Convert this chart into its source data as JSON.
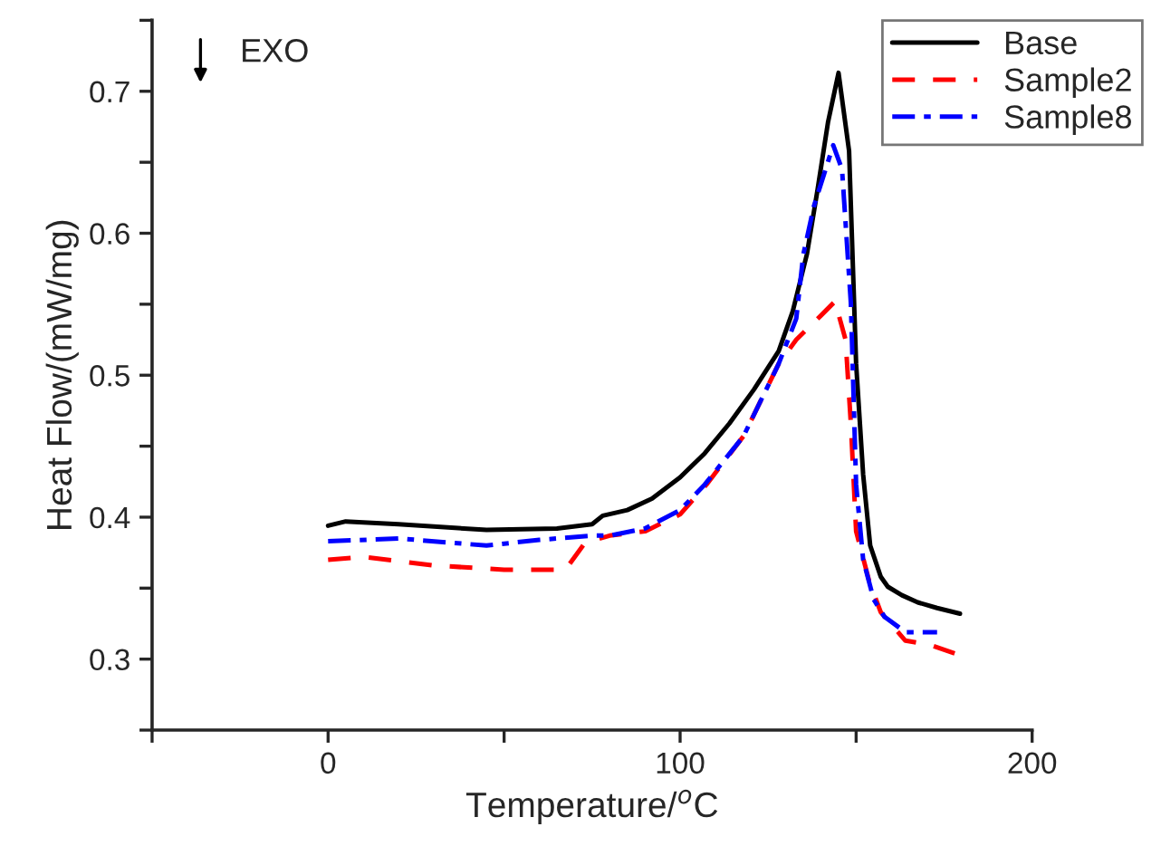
{
  "chart_data": {
    "type": "line",
    "xlabel": "Temperature/$^{o}$C",
    "ylabel": "Heat Flow/(mW/mg)",
    "annotations": [
      "EXO"
    ],
    "xlim": [
      -50,
      200
    ],
    "xticks": [
      {
        "value": -50,
        "label": null
      },
      0,
      {
        "value": 50,
        "label": null
      },
      100,
      {
        "value": 150,
        "label": null
      },
      200
    ],
    "ylim": [
      0.25,
      0.75
    ],
    "yticks": [
      {
        "value": 0.25,
        "label": null
      },
      0.3,
      {
        "value": 0.35,
        "label": null
      },
      0.4,
      {
        "value": 0.45,
        "label": null
      },
      0.5,
      {
        "value": 0.55,
        "label": null
      },
      0.6,
      {
        "value": 0.65,
        "label": null
      },
      0.7,
      {
        "value": 0.75,
        "label": null
      }
    ],
    "legend": "top right",
    "grid": false,
    "series": [
      {
        "name": "Base",
        "color": "#000000",
        "line_style": "solid",
        "x": [
          0,
          5,
          20,
          45,
          65,
          75,
          78,
          85,
          92,
          100,
          107,
          114,
          121,
          128,
          132,
          136,
          139,
          142,
          145,
          148,
          150,
          152,
          154,
          157,
          159,
          163,
          167.5,
          173,
          179.5
        ],
        "values": [
          0.394,
          0.397,
          0.395,
          0.391,
          0.392,
          0.395,
          0.401,
          0.405,
          0.413,
          0.428,
          0.445,
          0.466,
          0.49,
          0.517,
          0.545,
          0.585,
          0.63,
          0.678,
          0.713,
          0.658,
          0.508,
          0.43,
          0.38,
          0.358,
          0.351,
          0.345,
          0.34,
          0.336,
          0.332
        ]
      },
      {
        "name": "Sample2",
        "color": "#ff0000",
        "line_style": "dashed",
        "x": [
          0,
          10,
          30,
          50,
          65,
          68,
          73,
          80,
          90,
          100,
          107.5,
          118,
          128,
          133,
          140,
          144,
          147,
          148.5,
          150,
          153.7,
          157,
          164,
          171,
          178
        ],
        "values": [
          0.37,
          0.372,
          0.366,
          0.363,
          0.363,
          0.365,
          0.382,
          0.387,
          0.39,
          0.402,
          0.423,
          0.457,
          0.508,
          0.525,
          0.542,
          0.552,
          0.525,
          0.466,
          0.39,
          0.355,
          0.333,
          0.313,
          0.31,
          0.304
        ]
      },
      {
        "name": "Sample8",
        "color": "#0000ff",
        "line_style": "dashdot",
        "x": [
          0,
          20,
          45,
          60,
          75,
          80,
          90,
          100,
          107,
          118,
          128,
          133,
          135,
          138,
          143.5,
          146,
          148.5,
          150,
          152,
          155,
          158,
          164,
          173
        ],
        "values": [
          0.383,
          0.385,
          0.38,
          0.384,
          0.387,
          0.387,
          0.392,
          0.405,
          0.423,
          0.457,
          0.508,
          0.54,
          0.585,
          0.619,
          0.662,
          0.645,
          0.551,
          0.423,
          0.37,
          0.342,
          0.33,
          0.319,
          0.319
        ]
      }
    ]
  }
}
